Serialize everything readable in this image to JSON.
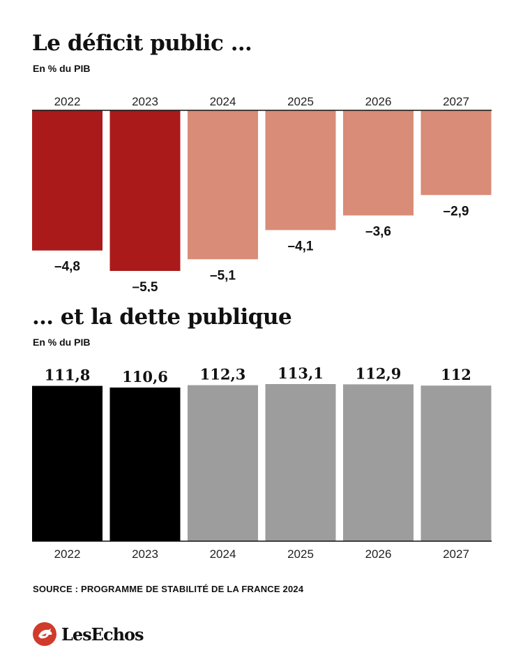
{
  "chart_data": [
    {
      "type": "bar",
      "title": "Le déficit public …",
      "subtitle": "En % du PIB",
      "categories": [
        "2022",
        "2023",
        "2024",
        "2025",
        "2026",
        "2027"
      ],
      "values": [
        -4.8,
        -5.5,
        -5.1,
        -4.1,
        -3.6,
        -2.9
      ],
      "value_labels": [
        "–4,8",
        "–5,5",
        "–5,1",
        "–4,1",
        "–3,6",
        "–2,9"
      ],
      "colors": [
        "#ab1a1a",
        "#ab1a1a",
        "#d98c77",
        "#d98c77",
        "#d98c77",
        "#d98c77"
      ],
      "ylim": [
        -5.5,
        0
      ]
    },
    {
      "type": "bar",
      "title": "… et la dette publique",
      "subtitle": "En % du PIB",
      "categories": [
        "2022",
        "2023",
        "2024",
        "2025",
        "2026",
        "2027"
      ],
      "values": [
        111.8,
        110.6,
        112.3,
        113.1,
        112.9,
        112
      ],
      "value_labels": [
        "111,8",
        "110,6",
        "112,3",
        "113,1",
        "112,9",
        "112"
      ],
      "colors": [
        "#000000",
        "#000000",
        "#9d9d9d",
        "#9d9d9d",
        "#9d9d9d",
        "#9d9d9d"
      ]
    }
  ],
  "source": "SOURCE : PROGRAMME DE STABILITÉ DE LA FRANCE 2024",
  "logo": {
    "name": "LesEchos",
    "icon": "les-echos-rooster-icon",
    "color": "#d03b2b"
  }
}
